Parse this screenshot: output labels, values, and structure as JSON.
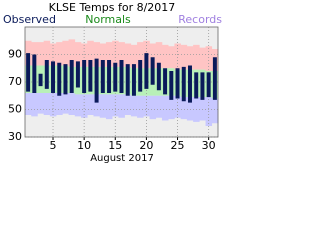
{
  "chart_data": {
    "type": "range",
    "title": "KLSE Temps for 8/2017",
    "x_label": "August 2017",
    "x": [
      1,
      2,
      3,
      4,
      5,
      6,
      7,
      8,
      9,
      10,
      11,
      12,
      13,
      14,
      15,
      16,
      17,
      18,
      19,
      20,
      21,
      22,
      23,
      24,
      25,
      26,
      27,
      28,
      29,
      30,
      31
    ],
    "xlim": [
      1,
      31
    ],
    "xticks": [
      5,
      10,
      15,
      20,
      25,
      30
    ],
    "ylim": [
      30,
      110
    ],
    "yticks": [
      30,
      50,
      70,
      90
    ],
    "grid": true,
    "series": [
      {
        "name": "Records",
        "color": "#a080e0",
        "high_color": "#ffc4c4",
        "low_color": "#c8c8ff",
        "high": [
          100,
          99,
          99,
          100,
          98,
          99,
          100,
          101,
          99,
          98,
          100,
          99,
          98,
          99,
          100,
          99,
          98,
          97,
          99,
          100,
          98,
          99,
          97,
          96,
          98,
          97,
          96,
          97,
          95,
          96,
          94
        ],
        "low": [
          46,
          45,
          47,
          46,
          45,
          46,
          47,
          46,
          45,
          44,
          46,
          45,
          44,
          43,
          45,
          44,
          46,
          45,
          44,
          45,
          43,
          44,
          42,
          43,
          44,
          43,
          42,
          41,
          42,
          38,
          40
        ]
      },
      {
        "name": "Normals",
        "color": "#1a8a1a",
        "band_color": "#b8f0b8",
        "high": [
          82,
          82,
          82,
          82,
          82,
          82,
          82,
          81,
          81,
          81,
          81,
          81,
          81,
          81,
          81,
          81,
          81,
          80,
          80,
          80,
          80,
          80,
          80,
          80,
          79,
          79,
          79,
          79,
          79,
          78,
          78
        ],
        "low": [
          62,
          62,
          62,
          62,
          62,
          62,
          62,
          62,
          61,
          61,
          61,
          61,
          61,
          61,
          61,
          61,
          61,
          60,
          60,
          60,
          60,
          60,
          60,
          60,
          60,
          59,
          59,
          59,
          59,
          59,
          58
        ]
      },
      {
        "name": "Observed",
        "color": "#0a1a5a",
        "high": [
          91,
          90,
          76,
          86,
          85,
          84,
          83,
          86,
          85,
          86,
          86,
          87,
          86,
          86,
          84,
          86,
          83,
          83,
          86,
          91,
          88,
          84,
          80,
          78,
          80,
          81,
          82,
          77,
          77,
          77,
          88
        ],
        "low": [
          63,
          62,
          67,
          65,
          62,
          60,
          61,
          62,
          66,
          62,
          63,
          55,
          62,
          62,
          63,
          62,
          60,
          60,
          63,
          65,
          68,
          64,
          61,
          57,
          58,
          56,
          55,
          58,
          57,
          59,
          57
        ]
      }
    ]
  }
}
